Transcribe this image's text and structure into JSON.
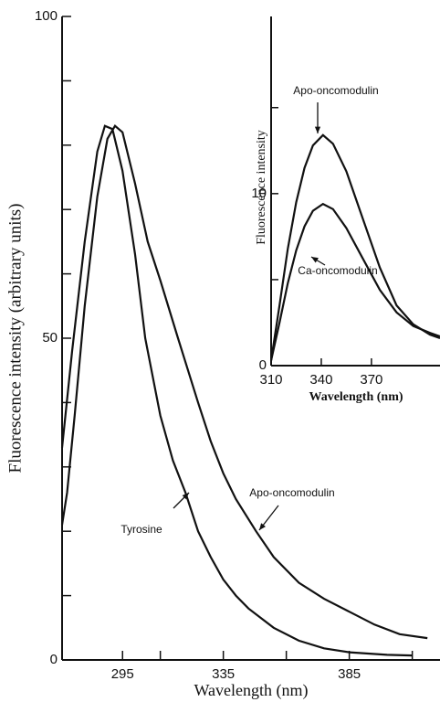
{
  "chart_data": [
    {
      "type": "line",
      "xlabel": "Wavelength (nm)",
      "ylabel": "Fluorescence intensity (arbitrary units)",
      "xlim": [
        271,
        421
      ],
      "ylim": [
        0,
        100
      ],
      "xticks": [
        295,
        335,
        385
      ],
      "xticks_minor": [
        310,
        360,
        410
      ],
      "yticks": [
        0,
        50,
        100
      ],
      "yticks_minor": [
        10,
        20,
        30,
        40,
        60,
        70,
        80,
        90
      ],
      "series": [
        {
          "name": "Tyrosine",
          "color": "#111111",
          "x": [
            271,
            275,
            280,
            285,
            288,
            291,
            295,
            300,
            304,
            310,
            315,
            320,
            325,
            330,
            335,
            340,
            345,
            350,
            355,
            365,
            375,
            385,
            400,
            410
          ],
          "values": [
            33,
            48,
            65,
            79,
            83,
            82.5,
            76,
            63,
            50,
            38,
            31,
            26,
            20,
            16,
            12.5,
            10,
            8,
            6.5,
            5,
            3,
            1.8,
            1.2,
            0.8,
            0.7
          ]
        },
        {
          "name": "Apo-oncomodulin",
          "color": "#111111",
          "x": [
            271,
            273,
            276,
            280,
            285,
            289,
            292,
            295,
            300,
            305,
            310,
            317,
            325,
            330,
            335,
            340,
            348,
            355,
            365,
            375,
            385,
            395,
            405,
            416
          ],
          "values": [
            21,
            26,
            38,
            55,
            72,
            81,
            83,
            82,
            74,
            65,
            59,
            50,
            40,
            34,
            29,
            25,
            20,
            16,
            12,
            9.5,
            7.5,
            5.5,
            4,
            3.4
          ]
        }
      ]
    },
    {
      "type": "line",
      "xlabel": "Wavelength (nm)",
      "ylabel": "Fluorescence intensity",
      "xlim": [
        310,
        411
      ],
      "ylim": [
        0,
        20.3
      ],
      "xticks": [
        310,
        340,
        370
      ],
      "yticks": [
        0,
        10
      ],
      "yticks_minor": [
        5,
        15
      ],
      "series": [
        {
          "name": "Apo-oncomodulin",
          "color": "#111111",
          "x": [
            310,
            315,
            320,
            325,
            330,
            335,
            341,
            347,
            355,
            365,
            375,
            385,
            395,
            405,
            411
          ],
          "values": [
            0.3,
            3.5,
            6.8,
            9.5,
            11.5,
            12.8,
            13.4,
            12.9,
            11.3,
            8.5,
            5.7,
            3.5,
            2.4,
            1.8,
            1.6
          ]
        },
        {
          "name": "Ca-oncomodulin",
          "color": "#111111",
          "x": [
            310,
            315,
            320,
            325,
            330,
            335,
            341,
            347,
            355,
            365,
            375,
            385,
            395,
            405,
            411
          ],
          "values": [
            0.3,
            2.5,
            4.8,
            6.7,
            8.1,
            9.0,
            9.4,
            9.1,
            8.0,
            6.2,
            4.4,
            3.1,
            2.3,
            1.9,
            1.7
          ]
        }
      ]
    }
  ]
}
